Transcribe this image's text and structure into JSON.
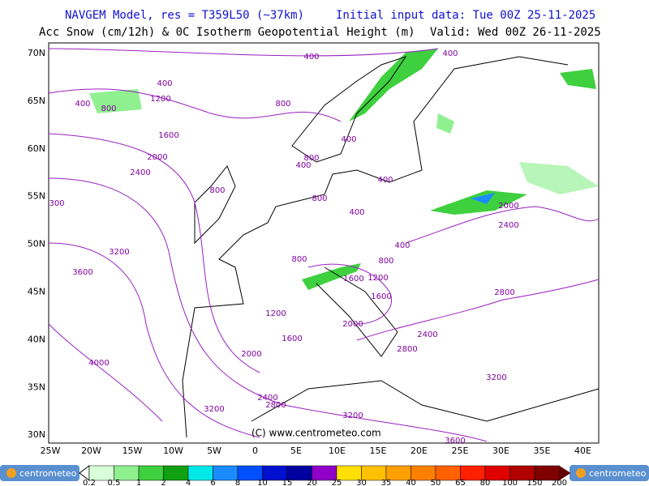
{
  "header": {
    "title": "NAVGEM Model, res = T359L50 (~37km)",
    "initial": "Initial input data: Tue 00Z 25-11-2025",
    "subtitle": "Acc Snow (cm/12h) & 0C Isotherm Geopotential Height (m)",
    "valid": "Valid: Wed 00Z 26-11-2025"
  },
  "map": {
    "lat_labels": [
      "70N",
      "65N",
      "60N",
      "55N",
      "50N",
      "45N",
      "40N",
      "35N",
      "30N"
    ],
    "lon_labels": [
      "25W",
      "20W",
      "15W",
      "10W",
      "5W",
      "0",
      "5E",
      "10E",
      "15E",
      "20E",
      "25E",
      "30E",
      "35E",
      "40E"
    ],
    "contour_labels": [
      400,
      400,
      400,
      1200,
      800,
      800,
      1600,
      2000,
      2400,
      400,
      800,
      400,
      400,
      800,
      800,
      400,
      300,
      2000,
      2400,
      3200,
      3600,
      400,
      800,
      800,
      1200,
      1600,
      1600,
      2800,
      1200,
      1600,
      2000,
      2000,
      2400,
      2800,
      4000,
      3200,
      2400,
      2800,
      3200,
      3200,
      3600,
      400
    ],
    "credit": "(C) www.centrometeo.com"
  },
  "legend": {
    "labels": [
      0.2,
      0.5,
      1,
      2,
      4,
      6,
      8,
      10,
      15,
      20,
      25,
      30,
      35,
      40,
      50,
      65,
      80,
      100,
      150,
      200
    ]
  },
  "logos": [
    "centrometeo",
    "centrometeo"
  ]
}
